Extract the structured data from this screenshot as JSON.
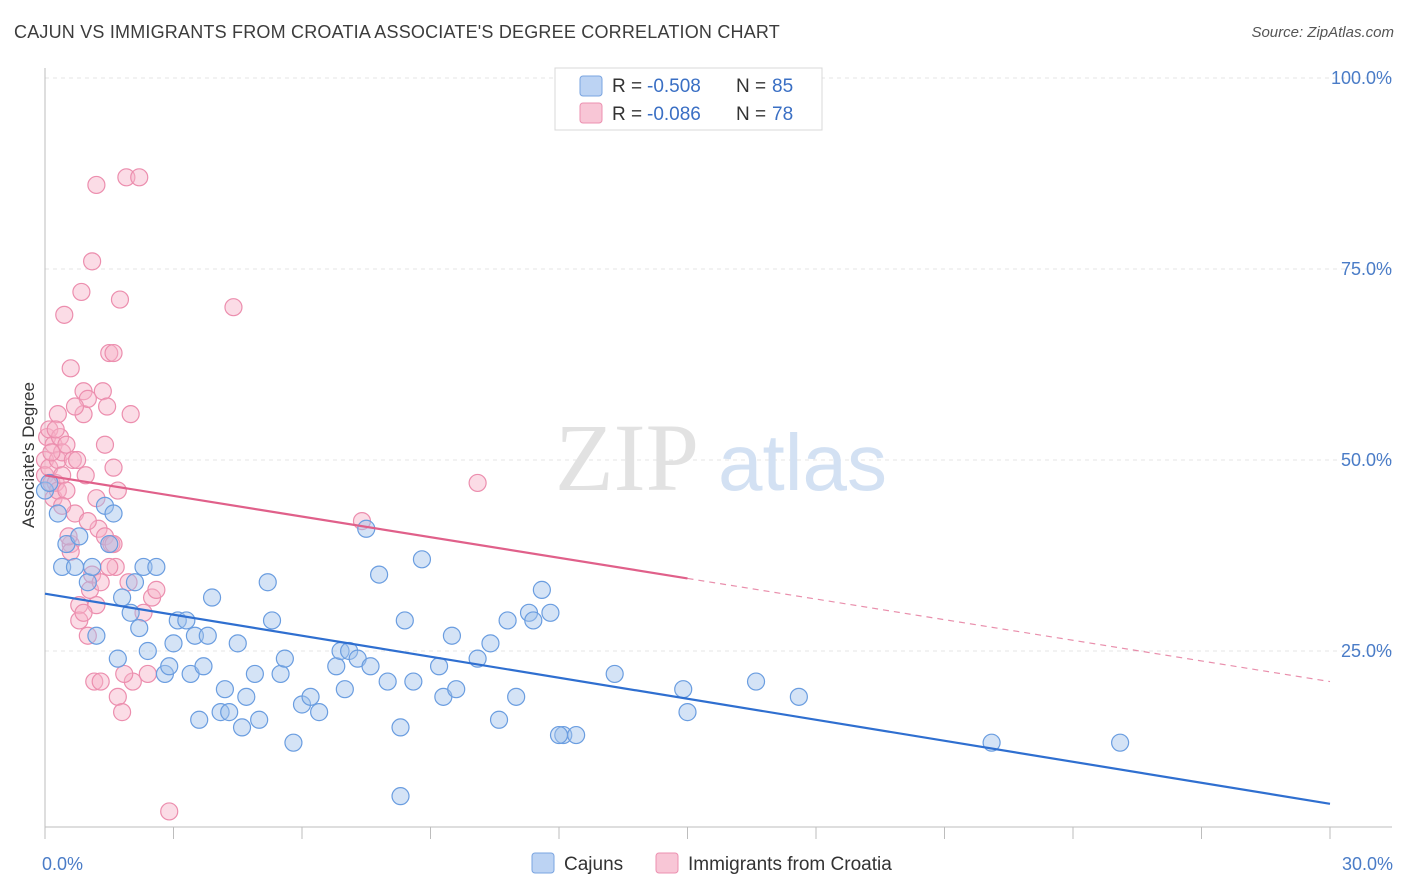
{
  "title": "CAJUN VS IMMIGRANTS FROM CROATIA ASSOCIATE'S DEGREE CORRELATION CHART",
  "source": "Source: ZipAtlas.com",
  "watermark": {
    "zip": "ZIP",
    "atlas": "atlas"
  },
  "chart_data": {
    "type": "scatter",
    "ylabel": "Associate's Degree",
    "xlim": [
      0,
      30
    ],
    "ylim": [
      0,
      105
    ],
    "x_ticks": [
      {
        "value": 0,
        "label": "0.0%"
      },
      {
        "value": 30,
        "label": "30.0%"
      }
    ],
    "y_ticks": [
      {
        "value": 100,
        "label": "100.0%"
      },
      {
        "value": 75,
        "label": "75.0%"
      },
      {
        "value": 50,
        "label": "50.0%"
      },
      {
        "value": 25,
        "label": "25.0%"
      }
    ],
    "grid": true,
    "legend_placement": "top-center",
    "series": [
      {
        "name": "Cajuns",
        "color": "#6a9de0",
        "line_color": "#2f6fd0",
        "r_label": "R =",
        "r_value": "-0.508",
        "n_label": "N =",
        "n_value": "85",
        "trend": {
          "x0": 0,
          "y0": 32.5,
          "x1": 30,
          "y1": 5.0,
          "dashed_from": null
        },
        "points": [
          [
            0.0,
            46
          ],
          [
            0.1,
            47
          ],
          [
            0.3,
            43
          ],
          [
            0.4,
            36
          ],
          [
            0.5,
            39
          ],
          [
            0.8,
            40
          ],
          [
            0.7,
            36
          ],
          [
            1.0,
            34
          ],
          [
            1.1,
            36
          ],
          [
            1.2,
            27
          ],
          [
            1.4,
            44
          ],
          [
            1.5,
            39
          ],
          [
            1.6,
            43
          ],
          [
            1.7,
            24
          ],
          [
            1.8,
            32
          ],
          [
            2.0,
            30
          ],
          [
            2.1,
            34
          ],
          [
            2.2,
            28
          ],
          [
            2.3,
            36
          ],
          [
            2.4,
            25
          ],
          [
            2.6,
            36
          ],
          [
            2.8,
            22
          ],
          [
            2.9,
            23
          ],
          [
            3.0,
            26
          ],
          [
            3.1,
            29
          ],
          [
            3.3,
            29
          ],
          [
            3.4,
            22
          ],
          [
            3.5,
            27
          ],
          [
            3.6,
            16
          ],
          [
            3.7,
            23
          ],
          [
            3.8,
            27
          ],
          [
            3.9,
            32
          ],
          [
            4.1,
            17
          ],
          [
            4.2,
            20
          ],
          [
            4.3,
            17
          ],
          [
            4.5,
            26
          ],
          [
            4.6,
            15
          ],
          [
            4.7,
            19
          ],
          [
            4.9,
            22
          ],
          [
            5.0,
            16
          ],
          [
            5.2,
            34
          ],
          [
            5.3,
            29
          ],
          [
            5.5,
            22
          ],
          [
            5.6,
            24
          ],
          [
            5.8,
            13
          ],
          [
            6.0,
            18
          ],
          [
            6.2,
            19
          ],
          [
            6.4,
            17
          ],
          [
            6.8,
            23
          ],
          [
            6.9,
            25
          ],
          [
            7.0,
            20
          ],
          [
            7.1,
            25
          ],
          [
            7.3,
            24
          ],
          [
            7.5,
            41
          ],
          [
            7.6,
            23
          ],
          [
            7.8,
            35
          ],
          [
            8.0,
            21
          ],
          [
            8.3,
            15
          ],
          [
            8.4,
            29
          ],
          [
            8.6,
            21
          ],
          [
            8.8,
            37
          ],
          [
            9.2,
            23
          ],
          [
            9.3,
            19
          ],
          [
            9.5,
            27
          ],
          [
            9.6,
            20
          ],
          [
            10.1,
            24
          ],
          [
            10.4,
            26
          ],
          [
            10.6,
            16
          ],
          [
            10.8,
            29
          ],
          [
            11.0,
            19
          ],
          [
            11.3,
            30
          ],
          [
            11.4,
            29
          ],
          [
            11.6,
            33
          ],
          [
            11.8,
            30
          ],
          [
            12.1,
            14
          ],
          [
            12.4,
            14
          ],
          [
            13.3,
            22
          ],
          [
            14.9,
            20
          ],
          [
            15.0,
            17
          ],
          [
            16.6,
            21
          ],
          [
            17.6,
            19
          ],
          [
            22.1,
            13
          ],
          [
            25.1,
            13
          ],
          [
            8.3,
            6
          ],
          [
            12.0,
            14
          ]
        ]
      },
      {
        "name": "Immigrants from Croatia",
        "color": "#f08aa8",
        "line_color": "#e0608a",
        "r_label": "R =",
        "r_value": "-0.086",
        "n_label": "N =",
        "n_value": "78",
        "trend": {
          "x0": 0,
          "y0": 48.0,
          "x1": 30,
          "y1": 21.0,
          "dashed_from": 15.0
        },
        "points": [
          [
            0.0,
            50
          ],
          [
            0.0,
            48
          ],
          [
            0.05,
            53
          ],
          [
            0.1,
            54
          ],
          [
            0.1,
            49
          ],
          [
            0.15,
            47
          ],
          [
            0.2,
            52
          ],
          [
            0.2,
            45
          ],
          [
            0.25,
            47
          ],
          [
            0.3,
            50
          ],
          [
            0.3,
            46
          ],
          [
            0.35,
            53
          ],
          [
            0.4,
            51
          ],
          [
            0.4,
            48
          ],
          [
            0.45,
            69
          ],
          [
            0.5,
            52
          ],
          [
            0.5,
            46
          ],
          [
            0.6,
            62
          ],
          [
            0.6,
            39
          ],
          [
            0.6,
            38
          ],
          [
            0.65,
            50
          ],
          [
            0.7,
            43
          ],
          [
            0.75,
            50
          ],
          [
            0.8,
            31
          ],
          [
            0.8,
            29
          ],
          [
            0.85,
            72
          ],
          [
            0.9,
            56
          ],
          [
            0.9,
            59
          ],
          [
            0.95,
            48
          ],
          [
            1.0,
            58
          ],
          [
            1.0,
            27
          ],
          [
            1.05,
            33
          ],
          [
            1.1,
            76
          ],
          [
            1.1,
            35
          ],
          [
            1.15,
            21
          ],
          [
            1.2,
            86
          ],
          [
            1.2,
            31
          ],
          [
            1.25,
            41
          ],
          [
            1.3,
            21
          ],
          [
            1.35,
            59
          ],
          [
            1.4,
            52
          ],
          [
            1.4,
            40
          ],
          [
            1.45,
            57
          ],
          [
            1.5,
            64
          ],
          [
            1.55,
            39
          ],
          [
            1.6,
            64
          ],
          [
            1.6,
            49
          ],
          [
            1.65,
            36
          ],
          [
            1.7,
            19
          ],
          [
            1.7,
            46
          ],
          [
            1.75,
            71
          ],
          [
            1.8,
            17
          ],
          [
            1.9,
            87
          ],
          [
            1.95,
            34
          ],
          [
            2.0,
            56
          ],
          [
            2.05,
            21
          ],
          [
            2.2,
            87
          ],
          [
            2.3,
            30
          ],
          [
            2.4,
            22
          ],
          [
            2.5,
            32
          ],
          [
            2.6,
            33
          ],
          [
            2.9,
            4
          ],
          [
            4.4,
            70
          ],
          [
            7.4,
            42
          ],
          [
            10.1,
            47
          ],
          [
            0.55,
            40
          ],
          [
            1.85,
            22
          ],
          [
            0.3,
            56
          ],
          [
            0.15,
            51
          ],
          [
            0.7,
            57
          ],
          [
            1.0,
            42
          ],
          [
            1.2,
            45
          ],
          [
            0.9,
            30
          ],
          [
            1.5,
            36
          ],
          [
            0.4,
            44
          ],
          [
            1.3,
            34
          ],
          [
            1.6,
            39
          ],
          [
            0.25,
            54
          ]
        ]
      }
    ]
  }
}
